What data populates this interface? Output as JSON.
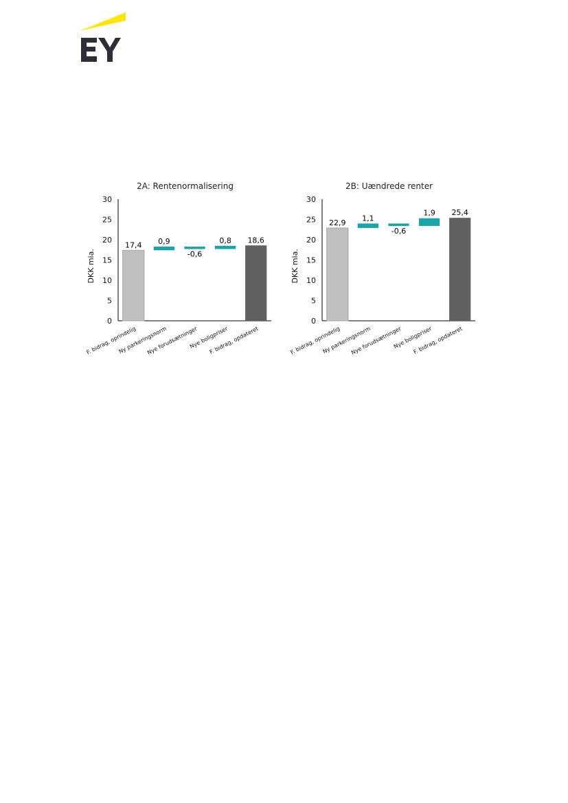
{
  "logo": {
    "text": "EY",
    "color": "#2e2e38",
    "beam_color": "#ffe600"
  },
  "colors": {
    "start": "#bfbfbf",
    "delta": "#1ba3aa",
    "end": "#616161",
    "axis": "#000000"
  },
  "chart_data": [
    {
      "type": "bar",
      "subtype": "waterfall",
      "title": "2A: Rentenormalisering",
      "ylabel": "DKK mia.",
      "ylim": [
        0,
        30
      ],
      "yticks": [
        0,
        5,
        10,
        15,
        20,
        25,
        30
      ],
      "categories": [
        "F. bidrag, oprindelig",
        "Ny parkeringsnorm",
        "Nye forudsætninger",
        "Nye boligpriser",
        "F. bidrag, opdateret"
      ],
      "values": [
        17.4,
        0.9,
        -0.6,
        0.8,
        18.6
      ],
      "labels": [
        "17,4",
        "0,9",
        "-0,6",
        "0,8",
        "18,6"
      ],
      "kinds": [
        "total",
        "delta",
        "delta",
        "delta",
        "total"
      ]
    },
    {
      "type": "bar",
      "subtype": "waterfall",
      "title": "2B: Uændrede renter",
      "ylabel": "DKK mia.",
      "ylim": [
        0,
        30
      ],
      "yticks": [
        0,
        5,
        10,
        15,
        20,
        25,
        30
      ],
      "categories": [
        "F. bidrag, oprindelig",
        "Ny parkeringsnorm",
        "Nye forudsætninger",
        "Nye boligpriser",
        "F. bidrag, opdateret"
      ],
      "values": [
        22.9,
        1.1,
        -0.6,
        1.9,
        25.4
      ],
      "labels": [
        "22,9",
        "1,1",
        "-0,6",
        "1,9",
        "25,4"
      ],
      "kinds": [
        "total",
        "delta",
        "delta",
        "delta",
        "total"
      ]
    }
  ]
}
